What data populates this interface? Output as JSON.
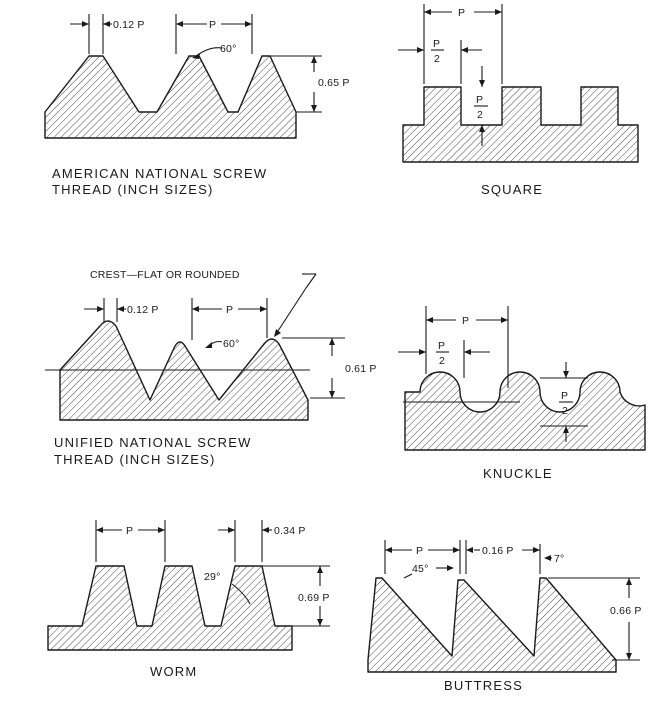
{
  "american": {
    "caption_line1": "AMERICAN NATIONAL SCREW",
    "caption_line2": "THREAD (INCH SIZES)",
    "dim_flat": "0.12 P",
    "dim_pitch": "P",
    "dim_angle": "60°",
    "dim_depth": "0.65 P"
  },
  "square": {
    "caption": "SQUARE",
    "dim_pitch": "P",
    "half_num": "P",
    "half_den": "2",
    "depth_num": "P",
    "depth_den": "2"
  },
  "unified": {
    "crest_note": "CREST—FLAT OR ROUNDED",
    "caption_line1": "UNIFIED NATIONAL SCREW",
    "caption_line2": "THREAD (INCH SIZES)",
    "dim_flat": "0.12 P",
    "dim_pitch": "P",
    "dim_angle": "60°",
    "dim_depth": "0.61 P"
  },
  "knuckle": {
    "caption": "KNUCKLE",
    "dim_pitch": "P",
    "half_num": "P",
    "half_den": "2",
    "depth_num": "P",
    "depth_den": "2"
  },
  "worm": {
    "caption": "WORM",
    "dim_pitch": "P",
    "dim_flat": "0.34 P",
    "dim_angle": "29°",
    "dim_depth": "0.69 P"
  },
  "buttress": {
    "caption": "BUTTRESS",
    "dim_pitch": "P",
    "dim_angle_45": "45°",
    "dim_flat": "0.16 P",
    "dim_angle_7": "7°",
    "dim_depth": "0.66 P"
  }
}
